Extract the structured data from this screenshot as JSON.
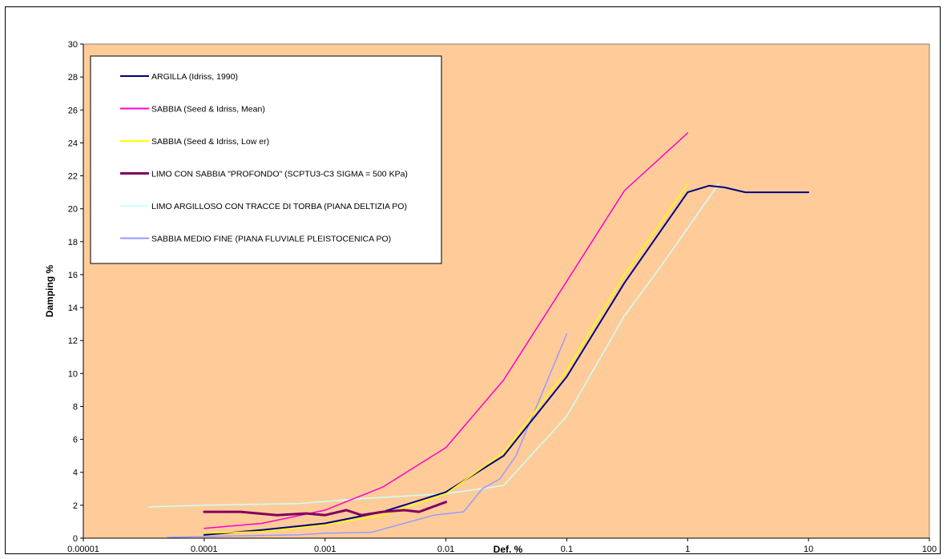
{
  "chart_data": {
    "type": "line",
    "title": "",
    "xlabel": "Def. %",
    "ylabel": "Damping %",
    "x_scale": "log",
    "xlim": [
      1e-05,
      100
    ],
    "ylim": [
      0,
      30
    ],
    "x_ticks": [
      "0.00001",
      "0.0001",
      "0.001",
      "0.01",
      "0.1",
      "1",
      "10",
      "100"
    ],
    "y_ticks": [
      0,
      2,
      4,
      6,
      8,
      10,
      12,
      14,
      16,
      18,
      20,
      22,
      24,
      26,
      28,
      30
    ],
    "grid": false,
    "legend_position": "top-left",
    "plot_background": "#ffcc99",
    "series": [
      {
        "name": "ARGILLA (Idriss, 1990)",
        "color": "#000080",
        "width": 2,
        "x": [
          0.0001,
          0.0003,
          0.001,
          0.003,
          0.01,
          0.03,
          0.1,
          0.3,
          1,
          1.5,
          2,
          3,
          10
        ],
        "y": [
          0.2,
          0.5,
          0.9,
          1.6,
          2.8,
          5.0,
          9.8,
          15.5,
          21.0,
          21.4,
          21.3,
          21.0,
          21.0
        ]
      },
      {
        "name": "SABBIA (Seed & Idriss, Mean)",
        "color": "#ff00cc",
        "width": 1.5,
        "x": [
          0.0001,
          0.0003,
          0.001,
          0.003,
          0.01,
          0.03,
          0.1,
          0.3,
          1
        ],
        "y": [
          0.6,
          0.9,
          1.7,
          3.1,
          5.5,
          9.6,
          15.6,
          21.1,
          24.6
        ]
      },
      {
        "name": "SABBIA (Seed & Idriss, Low er)",
        "color": "#ffff00",
        "width": 1.5,
        "x": [
          0.0001,
          0.0003,
          0.001,
          0.003,
          0.01,
          0.03,
          0.1,
          0.3,
          1
        ],
        "y": [
          0.3,
          0.4,
          0.8,
          1.4,
          2.7,
          5.2,
          10.2,
          16.0,
          21.5
        ]
      },
      {
        "name": "LIMO CON SABBIA \"PROFONDO\" (SCPTU3-C3 SIGMA = 500 KPa)",
        "color": "#800060",
        "width": 3,
        "x": [
          0.0001,
          0.0002,
          0.0004,
          0.0007,
          0.001,
          0.0015,
          0.002,
          0.003,
          0.0045,
          0.006,
          0.01
        ],
        "y": [
          1.6,
          1.6,
          1.4,
          1.5,
          1.4,
          1.7,
          1.4,
          1.6,
          1.7,
          1.6,
          2.2
        ]
      },
      {
        "name": "LIMO ARGILLOSO CON TRACCE DI TORBA (PIANA DELTIZIA PO)",
        "color": "#ccffff",
        "width": 1.5,
        "x": [
          3.5e-05,
          0.0001,
          0.0006,
          0.002,
          0.01,
          0.03,
          0.1,
          0.3,
          0.6,
          1.8
        ],
        "y": [
          1.9,
          2.0,
          2.1,
          2.4,
          2.7,
          3.2,
          7.4,
          13.5,
          16.5,
          21.5
        ]
      },
      {
        "name": "SABBIA MEDIO FINE (PIANA FLUVIALE PLEISTOCENICA PO)",
        "color": "#9999ff",
        "width": 1.5,
        "x": [
          5e-05,
          0.0001,
          0.0006,
          0.001,
          0.0024,
          0.008,
          0.014,
          0.02,
          0.028,
          0.038,
          0.1
        ],
        "y": [
          0.05,
          0.1,
          0.2,
          0.3,
          0.35,
          1.4,
          1.6,
          3.0,
          3.6,
          5.0,
          12.4
        ]
      }
    ]
  }
}
